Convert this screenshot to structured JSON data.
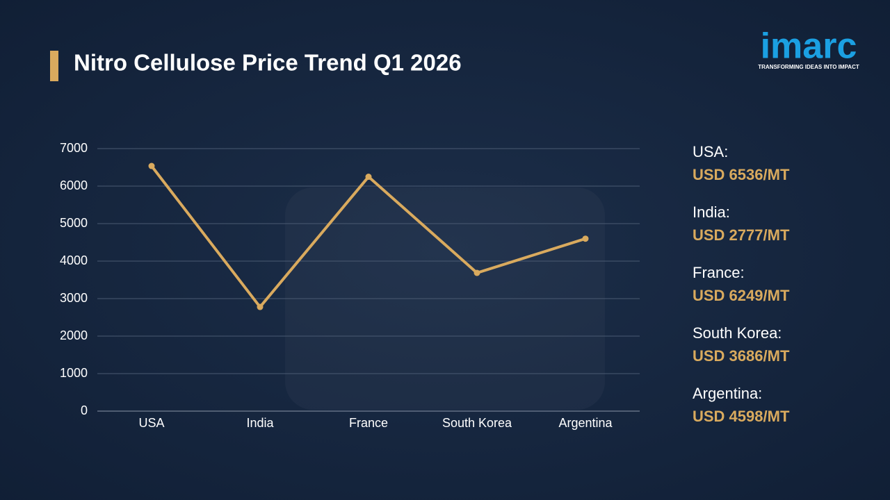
{
  "chart_data": {
    "type": "line",
    "title": "Nitro Cellulose Price Trend Q1 2026",
    "categories": [
      "USA",
      "India",
      "France",
      "South Korea",
      "Argentina"
    ],
    "values": [
      6536,
      2777,
      6249,
      3686,
      4598
    ],
    "value_labels": [
      "USD 6536/MT",
      "USD 2777/MT",
      "USD 6249/MT",
      "USD 3686/MT",
      "USD 4598/MT"
    ],
    "side_labels": [
      "USA:",
      "India:",
      "France:",
      "South Korea:",
      "Argentina:"
    ],
    "color": "#d9aa5e",
    "ylim": [
      0,
      7000
    ],
    "yticks": [
      0,
      1000,
      2000,
      3000,
      4000,
      5000,
      6000,
      7000
    ],
    "grid": true
  },
  "logo": {
    "name": "imarc",
    "tagline": "TRANSFORMING IDEAS INTO IMPACT"
  }
}
